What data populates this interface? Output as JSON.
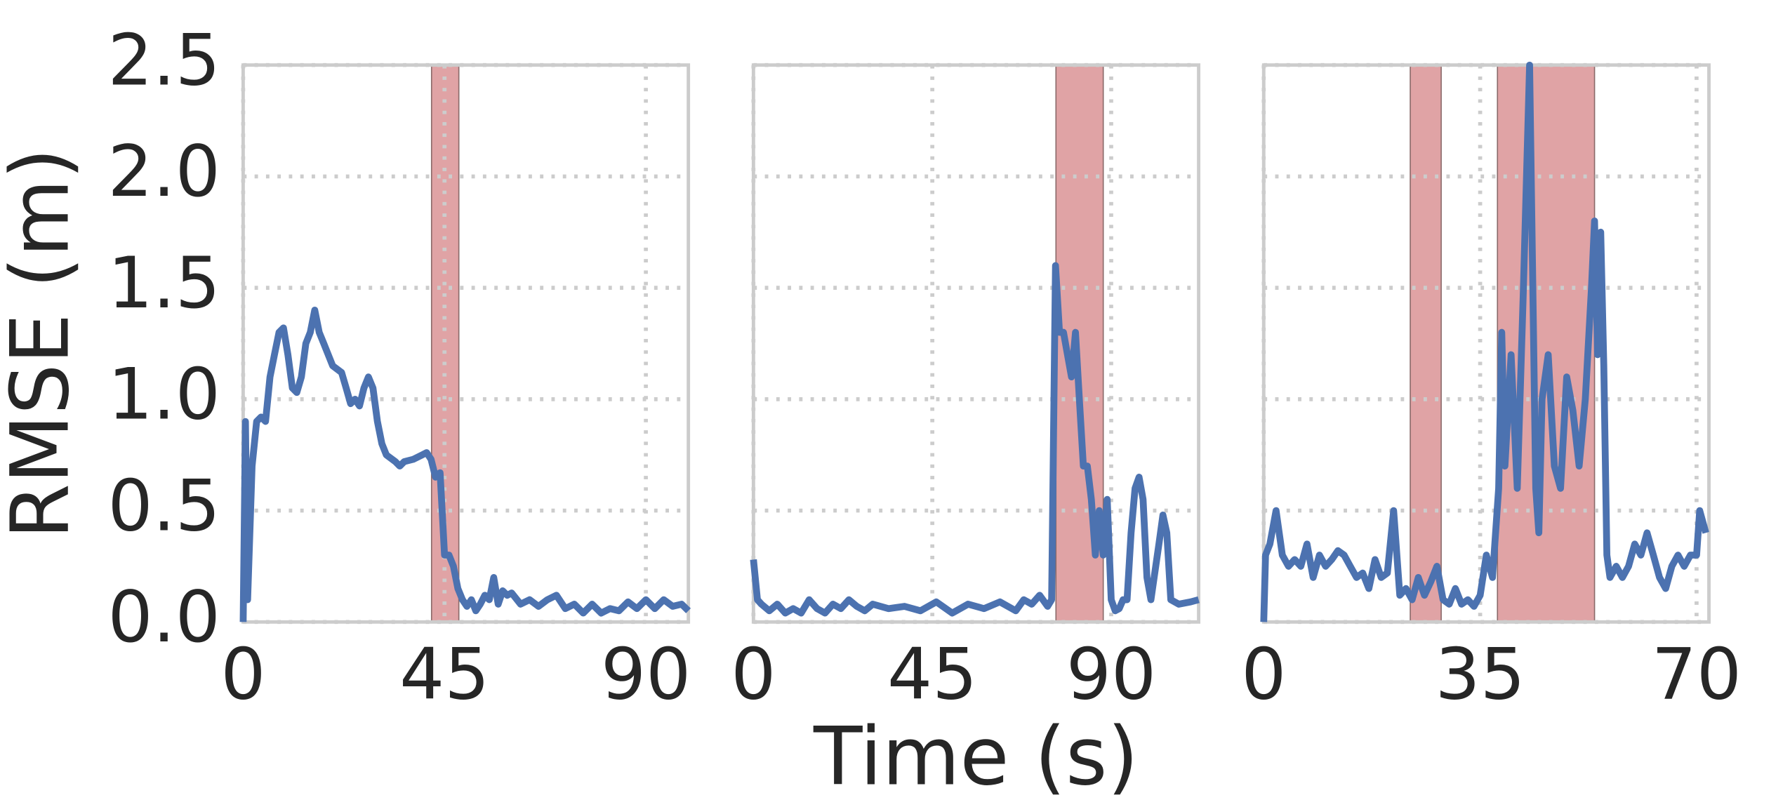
{
  "chart_data": [
    {
      "type": "line",
      "ylabel": "RMSE (m)",
      "color": "#4c72b0",
      "span_color": "#e0a3a5",
      "grid": true,
      "xlim": [
        0,
        99.5
      ],
      "xticks": [
        0,
        45,
        90
      ],
      "ylim": [
        0,
        2.5
      ],
      "yticks": [
        {
          "value": 0,
          "label": "0.0"
        },
        {
          "value": 0.5,
          "label": "0.5"
        },
        {
          "value": 1,
          "label": "1.0"
        },
        {
          "value": 1.5,
          "label": "1.5"
        },
        {
          "value": 2,
          "label": "2.0"
        },
        {
          "value": 2.5,
          "label": "2.5"
        }
      ],
      "spans": [
        [
          42.1,
          48.2
        ]
      ],
      "x": [
        0,
        0.5,
        1,
        2,
        3,
        4,
        5,
        6,
        7,
        8,
        9,
        10,
        11,
        12,
        13,
        14,
        15,
        16,
        17,
        18,
        20,
        22,
        23,
        24,
        25,
        26,
        27,
        28,
        29,
        30,
        31,
        32,
        34,
        35,
        36,
        38,
        40,
        41,
        42,
        43,
        44,
        45,
        46,
        47,
        48,
        49,
        50,
        51,
        52,
        53,
        54,
        55,
        56,
        57,
        58,
        59,
        60,
        62,
        64,
        66,
        68,
        70,
        72,
        74,
        76,
        78,
        80,
        82,
        84,
        86,
        88,
        90,
        92,
        94,
        96,
        98,
        99.5
      ],
      "values": [
        0,
        0.9,
        0.1,
        0.7,
        0.9,
        0.92,
        0.9,
        1.1,
        1.2,
        1.3,
        1.32,
        1.2,
        1.05,
        1.03,
        1.1,
        1.25,
        1.3,
        1.4,
        1.3,
        1.25,
        1.15,
        1.12,
        1.05,
        0.98,
        1,
        0.97,
        1.05,
        1.1,
        1.05,
        0.9,
        0.8,
        0.75,
        0.72,
        0.7,
        0.72,
        0.73,
        0.75,
        0.76,
        0.73,
        0.65,
        0.67,
        0.3,
        0.3,
        0.25,
        0.15,
        0.1,
        0.07,
        0.1,
        0.05,
        0.08,
        0.12,
        0.1,
        0.2,
        0.08,
        0.14,
        0.12,
        0.13,
        0.08,
        0.1,
        0.07,
        0.1,
        0.12,
        0.06,
        0.08,
        0.04,
        0.08,
        0.04,
        0.06,
        0.05,
        0.09,
        0.06,
        0.1,
        0.06,
        0.1,
        0.07,
        0.08,
        0.05
      ]
    },
    {
      "type": "line",
      "xlabel": "Time (s)",
      "color": "#4c72b0",
      "span_color": "#e0a3a5",
      "grid": true,
      "xlim": [
        0,
        112
      ],
      "xticks": [
        0,
        45,
        90
      ],
      "ylim": [
        0,
        2.5
      ],
      "spans": [
        [
          76.1,
          88
        ]
      ],
      "x": [
        0,
        1,
        2,
        4,
        6,
        8,
        10,
        12,
        14,
        16,
        18,
        20,
        22,
        24,
        26,
        28,
        30,
        34,
        38,
        42,
        46,
        50,
        54,
        58,
        62,
        66,
        68,
        70,
        72,
        74,
        75,
        76,
        77,
        78,
        79,
        80,
        81,
        82,
        83,
        84,
        85,
        86,
        87,
        88,
        89,
        90,
        91,
        92,
        93,
        94,
        95,
        96,
        97,
        98,
        99,
        100,
        102,
        103,
        104,
        105,
        107,
        110,
        112
      ],
      "values": [
        0.28,
        0.1,
        0.08,
        0.05,
        0.08,
        0.04,
        0.06,
        0.04,
        0.1,
        0.06,
        0.04,
        0.08,
        0.06,
        0.1,
        0.07,
        0.05,
        0.08,
        0.06,
        0.07,
        0.05,
        0.09,
        0.04,
        0.08,
        0.06,
        0.09,
        0.05,
        0.1,
        0.08,
        0.12,
        0.07,
        0.1,
        1.6,
        1.3,
        1.3,
        1.2,
        1.1,
        1.3,
        1,
        0.7,
        0.7,
        0.55,
        0.3,
        0.5,
        0.3,
        0.55,
        0.1,
        0.05,
        0.06,
        0.1,
        0.1,
        0.4,
        0.6,
        0.65,
        0.55,
        0.2,
        0.1,
        0.35,
        0.48,
        0.4,
        0.1,
        0.08,
        0.09,
        0.1
      ]
    },
    {
      "type": "line",
      "color": "#4c72b0",
      "span_color": "#e0a3a5",
      "grid": true,
      "xlim": [
        0,
        72
      ],
      "xticks": [
        0,
        35,
        70
      ],
      "ylim": [
        0,
        2.5
      ],
      "spans": [
        [
          23.7,
          28.7
        ],
        [
          37.8,
          53.5
        ]
      ],
      "x": [
        0,
        0.3,
        1,
        2,
        3,
        4,
        5,
        6,
        7,
        8,
        9,
        10,
        11,
        12,
        13,
        14,
        15,
        16,
        17,
        18,
        19,
        20,
        21,
        22,
        23,
        24,
        25,
        26,
        27,
        28,
        29,
        30,
        31,
        32,
        33,
        34,
        35,
        36,
        37,
        38,
        38.5,
        39,
        40,
        41,
        42,
        43,
        44,
        44.5,
        45,
        46,
        47,
        48,
        49,
        50,
        51,
        52,
        53,
        53.5,
        54,
        54.5,
        55,
        55.5,
        56,
        57,
        58,
        59,
        60,
        61,
        62,
        63,
        64,
        65,
        66,
        67,
        68,
        69,
        70,
        70.5,
        71,
        71.5
      ],
      "values": [
        0,
        0.3,
        0.35,
        0.5,
        0.3,
        0.25,
        0.28,
        0.25,
        0.35,
        0.2,
        0.3,
        0.25,
        0.28,
        0.32,
        0.3,
        0.25,
        0.2,
        0.22,
        0.15,
        0.28,
        0.2,
        0.22,
        0.5,
        0.12,
        0.15,
        0.1,
        0.2,
        0.12,
        0.18,
        0.25,
        0.1,
        0.08,
        0.15,
        0.08,
        0.1,
        0.07,
        0.12,
        0.3,
        0.2,
        0.6,
        1.3,
        0.7,
        1.2,
        0.6,
        1.5,
        2.5,
        0.6,
        0.4,
        1,
        1.2,
        0.7,
        0.6,
        1.1,
        0.95,
        0.7,
        1,
        1.5,
        1.8,
        1.2,
        1.75,
        1.15,
        0.3,
        0.2,
        0.25,
        0.2,
        0.25,
        0.35,
        0.3,
        0.4,
        0.3,
        0.2,
        0.15,
        0.25,
        0.3,
        0.25,
        0.3,
        0.3,
        0.5,
        0.45,
        0.4
      ]
    }
  ]
}
